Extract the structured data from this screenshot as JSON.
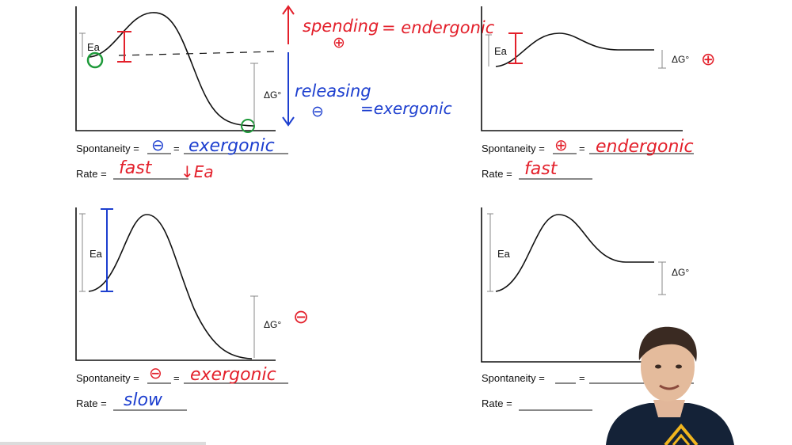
{
  "labels": {
    "ea": "Ea",
    "dg": "ΔG°",
    "spontaneity": "Spontaneity =",
    "equals": "=",
    "rate": "Rate ="
  },
  "annotations": {
    "spending": "spending",
    "spending_sign": "⊕",
    "endergonic_eq": "= endergonic",
    "releasing": "releasing",
    "releasing_sign": "⊖",
    "exergonic_eq": "=exergonic",
    "d1_spont_sign": "⊖",
    "d1_spont_word": "exergonic",
    "d1_rate": "fast",
    "d1_rate_note": "↓Ea",
    "d2_sign": "⊕",
    "d2_spont_sign": "⊕",
    "d2_spont_word": "endergonic",
    "d2_rate": "fast",
    "d3_sign": "⊖",
    "d3_spont_sign": "⊖",
    "d3_spont_word": "exergonic",
    "d3_rate": "slow"
  },
  "colors": {
    "red": "#e3202b",
    "blue": "#1d3fcf",
    "green": "#1e9a3a",
    "curve": "#111111"
  },
  "icons": {
    "presenter": "presenter-video-icon"
  }
}
